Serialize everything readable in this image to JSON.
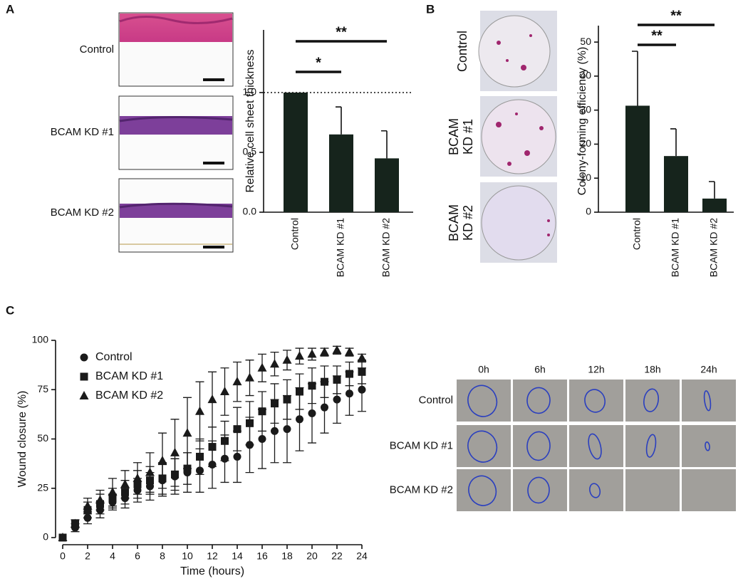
{
  "figure": {
    "panel_labels": [
      "A",
      "B",
      "C"
    ],
    "sheet_images": {
      "rows": [
        "Control",
        "BCAM KD #1",
        "BCAM KD #2"
      ]
    },
    "colony_images": {
      "rows": [
        [
          "Control"
        ],
        [
          "BCAM",
          "KD #1"
        ],
        [
          "BCAM",
          "KD #2"
        ]
      ]
    },
    "wound_images": {
      "columns": [
        "0h",
        "6h",
        "12h",
        "18h",
        "24h"
      ],
      "rows": [
        "Control",
        "BCAM KD #1",
        "BCAM KD #2"
      ]
    }
  },
  "chart_data": [
    {
      "type": "bar",
      "y_label": "Relative cell sheet thickness",
      "categories": [
        "Control",
        "BCAM KD #1",
        "BCAM KD #2"
      ],
      "values": [
        1.0,
        0.65,
        0.45
      ],
      "errors": [
        0,
        0.23,
        0.23
      ],
      "color": "#16241c",
      "ylim": [
        0,
        1.5
      ],
      "yticks": [
        {
          "value": 0,
          "label": "0.0"
        },
        {
          "value": 0.5,
          "label": "0.5"
        },
        {
          "value": 1,
          "label": "1.0"
        }
      ],
      "reference_line": 1,
      "significance": [
        {
          "from": "Control",
          "to": "BCAM KD #1",
          "label": "*"
        },
        {
          "from": "Control",
          "to": "BCAM KD #2",
          "label": "**"
        }
      ]
    },
    {
      "type": "bar",
      "y_label": "Colony-forming efficiency (%)",
      "categories": [
        "Control",
        "BCAM KD #1",
        "BCAM KD #2"
      ],
      "values": [
        31.3,
        16.5,
        4.0
      ],
      "errors": [
        16,
        8,
        5
      ],
      "color": "#16241c",
      "ylim": [
        0,
        54
      ],
      "yticks": [
        0,
        10,
        20,
        30,
        40,
        50
      ],
      "significance": [
        {
          "from": "Control",
          "to": "BCAM KD #1",
          "label": "**"
        },
        {
          "from": "Control",
          "to": "BCAM KD #2",
          "label": "**"
        }
      ]
    },
    {
      "type": "scatter",
      "x_label": "Time (hours)",
      "y_label": "Wound closure (%)",
      "x": [
        0,
        1,
        2,
        3,
        4,
        5,
        6,
        7,
        8,
        9,
        10,
        11,
        12,
        13,
        14,
        15,
        16,
        17,
        18,
        19,
        20,
        21,
        22,
        23,
        24
      ],
      "series": [
        {
          "name": "Control",
          "marker": "circle",
          "color": "#1a1a1a",
          "values": [
            0,
            5,
            10,
            14,
            18,
            20,
            24,
            26,
            29,
            31,
            33,
            34,
            37,
            40,
            41,
            47,
            50,
            54,
            55,
            60,
            63,
            66,
            70,
            73,
            75
          ],
          "errors": [
            0,
            2,
            3,
            4,
            4,
            5,
            6,
            7,
            8,
            9,
            10,
            11,
            12,
            12,
            13,
            14,
            15,
            16,
            17,
            16,
            15,
            13,
            12,
            11,
            11
          ]
        },
        {
          "name": "BCAM KD #1",
          "marker": "square",
          "color": "#1a1a1a",
          "values": [
            0,
            7,
            14,
            17,
            20,
            23,
            27,
            29,
            30,
            32,
            35,
            41,
            46,
            49,
            55,
            58,
            64,
            68,
            70,
            74,
            77,
            79,
            80,
            83,
            84
          ],
          "errors": [
            0,
            2,
            4,
            5,
            5,
            6,
            7,
            7,
            8,
            8,
            8,
            9,
            10,
            10,
            11,
            11,
            10,
            10,
            10,
            9,
            9,
            8,
            7,
            6,
            6
          ]
        },
        {
          "name": "BCAM KD #2",
          "marker": "triangle",
          "color": "#1a1a1a",
          "values": [
            0,
            7,
            16,
            19,
            23,
            27,
            30,
            33,
            39,
            43,
            53,
            64,
            70,
            74,
            79,
            81,
            86,
            88,
            90,
            92,
            93,
            94,
            95,
            94,
            91
          ],
          "errors": [
            0,
            2,
            4,
            5,
            7,
            7,
            8,
            10,
            14,
            17,
            18,
            15,
            14,
            12,
            10,
            9,
            7,
            6,
            5,
            4,
            3,
            2,
            2,
            2,
            2
          ]
        }
      ],
      "xlim": [
        0,
        24
      ],
      "xticks": [
        0,
        2,
        4,
        6,
        8,
        10,
        12,
        14,
        16,
        18,
        20,
        22,
        24
      ],
      "ylim": [
        0,
        100
      ],
      "yticks": [
        0,
        25,
        50,
        75,
        100
      ],
      "legend": "upper left"
    }
  ]
}
